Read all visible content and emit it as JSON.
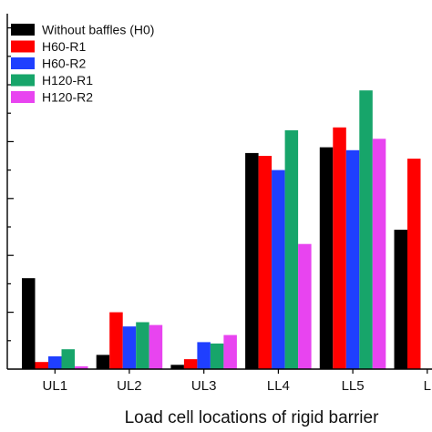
{
  "chart_data": {
    "type": "bar",
    "title": "",
    "xlabel": "Load cell locations of rigid barrier",
    "ylabel": "",
    "categories": [
      "UL1",
      "UL2",
      "UL3",
      "LL4",
      "LL5",
      "L"
    ],
    "ylim": [
      0,
      12.5
    ],
    "y_tick_step": 1,
    "y_tick_labels_visible": false,
    "grid": false,
    "legend_position": "top-left",
    "series": [
      {
        "name": "Without baffles (H0)",
        "color": "#000000",
        "values": [
          3.2,
          0.5,
          0.15,
          7.6,
          7.8,
          4.9
        ]
      },
      {
        "name": "H60-R1",
        "color": "#ff0000",
        "values": [
          0.25,
          2.0,
          0.35,
          7.5,
          8.5,
          7.4
        ]
      },
      {
        "name": "H60-R2",
        "color": "#1f3fff",
        "values": [
          0.45,
          1.5,
          0.95,
          7.0,
          7.7,
          null
        ]
      },
      {
        "name": "H120-R1",
        "color": "#17a56a",
        "values": [
          0.7,
          1.65,
          0.9,
          8.4,
          9.8,
          null
        ]
      },
      {
        "name": "H120-R2",
        "color": "#e844f0",
        "values": [
          0.1,
          1.55,
          1.2,
          4.4,
          8.1,
          null
        ]
      }
    ]
  }
}
